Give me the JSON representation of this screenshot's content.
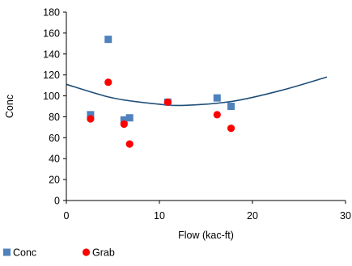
{
  "chart_data": {
    "type": "scatter",
    "xlabel": "Flow (kac-ft)",
    "ylabel": "Conc",
    "xlim": [
      0,
      30
    ],
    "ylim": [
      0,
      180
    ],
    "x_ticks": [
      "0",
      "10",
      "20",
      "30"
    ],
    "y_ticks": [
      "0",
      "20",
      "40",
      "60",
      "80",
      "100",
      "120",
      "140",
      "160",
      "180"
    ],
    "grid": false,
    "legend_position": "bottom-left",
    "series": [
      {
        "name": "Conc",
        "marker": "square",
        "color": "#4f81bd",
        "points": [
          {
            "x": 2.6,
            "y": 82
          },
          {
            "x": 4.5,
            "y": 154
          },
          {
            "x": 6.2,
            "y": 77
          },
          {
            "x": 6.8,
            "y": 79
          },
          {
            "x": 10.9,
            "y": 94
          },
          {
            "x": 16.2,
            "y": 98
          },
          {
            "x": 17.7,
            "y": 90
          }
        ]
      },
      {
        "name": "Grab",
        "marker": "circle",
        "color": "#ff0000",
        "points": [
          {
            "x": 2.6,
            "y": 78
          },
          {
            "x": 4.5,
            "y": 113
          },
          {
            "x": 6.2,
            "y": 73
          },
          {
            "x": 6.8,
            "y": 54
          },
          {
            "x": 10.9,
            "y": 94
          },
          {
            "x": 16.2,
            "y": 82
          },
          {
            "x": 17.7,
            "y": 69
          }
        ]
      }
    ],
    "trendline": {
      "type": "curve",
      "color": "#1f4e79",
      "points": [
        {
          "x": 0,
          "y": 111
        },
        {
          "x": 5,
          "y": 98
        },
        {
          "x": 10,
          "y": 92
        },
        {
          "x": 13,
          "y": 91
        },
        {
          "x": 18,
          "y": 95
        },
        {
          "x": 23,
          "y": 105
        },
        {
          "x": 28,
          "y": 118
        }
      ]
    }
  }
}
